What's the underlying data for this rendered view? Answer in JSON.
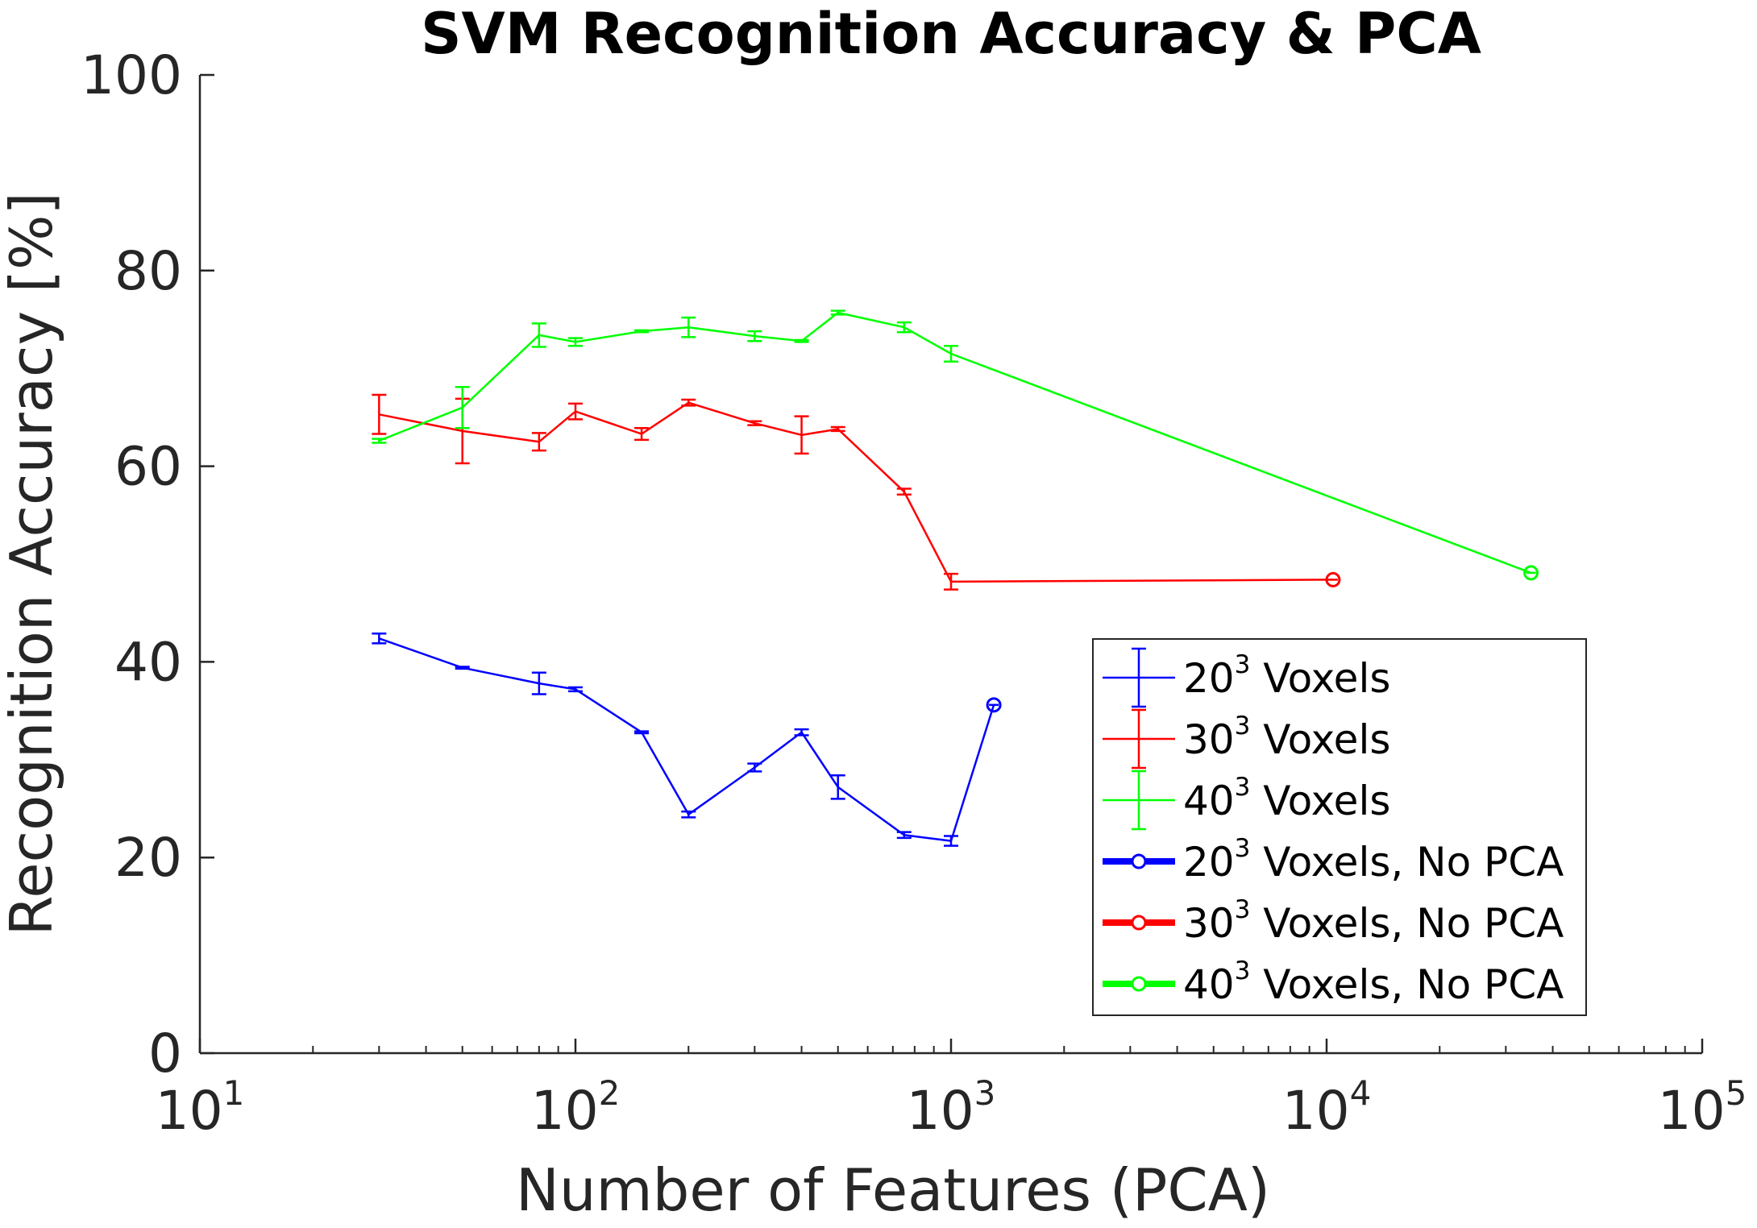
{
  "chart_data": {
    "type": "line",
    "title": "SVM Recognition Accuracy & PCA",
    "xlabel": "Number of Features (PCA)",
    "ylabel": "Recognition Accuracy [%]",
    "xscale": "log",
    "xlim": [
      10,
      100000
    ],
    "ylim": [
      0,
      100
    ],
    "x_ticks": [
      {
        "base": "10",
        "exp": "1",
        "value": 10
      },
      {
        "base": "10",
        "exp": "2",
        "value": 100
      },
      {
        "base": "10",
        "exp": "3",
        "value": 1000
      },
      {
        "base": "10",
        "exp": "4",
        "value": 10000
      },
      {
        "base": "10",
        "exp": "5",
        "value": 100000
      }
    ],
    "y_ticks": [
      0,
      20,
      40,
      60,
      80,
      100
    ],
    "y_tick_labels": [
      "0",
      "20",
      "40",
      "60",
      "80",
      "100"
    ],
    "grid": false,
    "legend_position": "bottom-right",
    "series": [
      {
        "label_base": "20",
        "label_exp": "3",
        "label_suffix": " Voxels",
        "color": "#0000ff",
        "style": "errorbar",
        "x": [
          30,
          50,
          80,
          100,
          150,
          200,
          300,
          400,
          500,
          750,
          1000,
          1300
        ],
        "y": [
          42.4,
          39.4,
          37.8,
          37.2,
          32.8,
          24.4,
          29.2,
          32.8,
          27.2,
          22.3,
          21.7,
          35.6
        ],
        "err": [
          0.5,
          0.1,
          1.1,
          0.2,
          0.1,
          0.3,
          0.4,
          0.3,
          1.2,
          0.3,
          0.5,
          0.0
        ]
      },
      {
        "label_base": "30",
        "label_exp": "3",
        "label_suffix": " Voxels",
        "color": "#ff0000",
        "style": "errorbar",
        "x": [
          30,
          50,
          80,
          100,
          150,
          200,
          300,
          400,
          500,
          750,
          1000,
          10400
        ],
        "y": [
          65.3,
          63.6,
          62.5,
          65.6,
          63.3,
          66.5,
          64.4,
          63.2,
          63.8,
          57.4,
          48.2,
          48.4
        ],
        "err": [
          2.0,
          3.3,
          0.9,
          0.8,
          0.6,
          0.3,
          0.2,
          1.9,
          0.2,
          0.3,
          0.8,
          0.0
        ]
      },
      {
        "label_base": "40",
        "label_exp": "3",
        "label_suffix": " Voxels",
        "color": "#00ff00",
        "style": "errorbar",
        "x": [
          30,
          50,
          80,
          100,
          150,
          200,
          300,
          400,
          500,
          750,
          1000,
          35000
        ],
        "y": [
          62.6,
          66.0,
          73.4,
          72.7,
          73.8,
          74.2,
          73.3,
          72.8,
          75.7,
          74.2,
          71.5,
          49.1
        ],
        "err": [
          0.2,
          2.1,
          1.2,
          0.4,
          0.1,
          1.0,
          0.5,
          0.1,
          0.2,
          0.5,
          0.8,
          0.0
        ]
      },
      {
        "label_base": "20",
        "label_exp": "3",
        "label_suffix": " Voxels, No PCA",
        "color": "#0000ff",
        "style": "marker",
        "x": [
          1300
        ],
        "y": [
          35.6
        ]
      },
      {
        "label_base": "30",
        "label_exp": "3",
        "label_suffix": " Voxels, No PCA",
        "color": "#ff0000",
        "style": "marker",
        "x": [
          10400
        ],
        "y": [
          48.4
        ]
      },
      {
        "label_base": "40",
        "label_exp": "3",
        "label_suffix": " Voxels, No PCA",
        "color": "#00ff00",
        "style": "marker",
        "x": [
          35000
        ],
        "y": [
          49.1
        ]
      }
    ]
  }
}
